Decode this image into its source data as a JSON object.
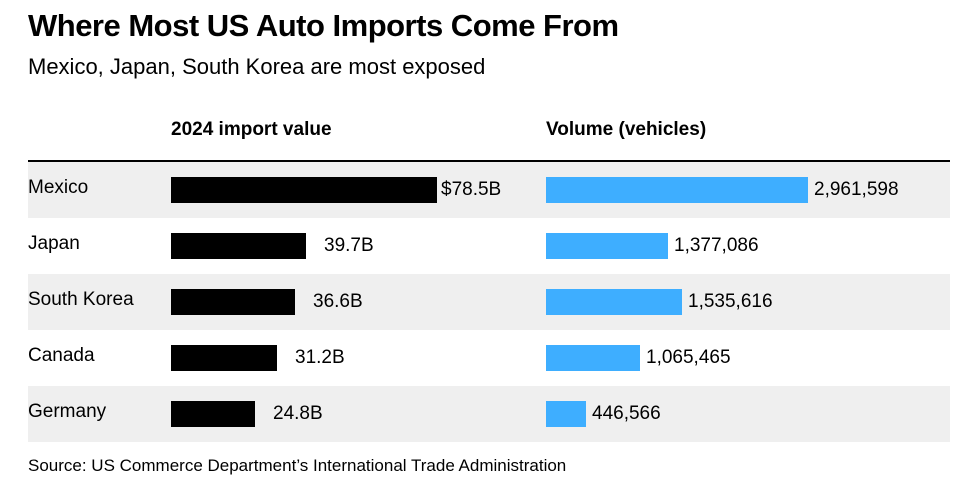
{
  "chart_data": {
    "type": "bar",
    "title": "Where Most US Auto Imports Come From",
    "subtitle": "Mexico, Japan, South Korea are most exposed",
    "categories": [
      "Mexico",
      "Japan",
      "South Korea",
      "Canada",
      "Germany"
    ],
    "series": [
      {
        "name": "2024 import value",
        "values": [
          78.5,
          39.7,
          36.6,
          31.2,
          24.8
        ],
        "labels": [
          "$78.5B",
          "39.7B",
          "36.6B",
          "31.2B",
          "24.8B"
        ],
        "color": "#000000",
        "unit": "billion USD"
      },
      {
        "name": "Volume (vehicles)",
        "values": [
          2961598,
          1377086,
          1535616,
          1065465,
          446566
        ],
        "labels": [
          "2,961,598",
          "1,377,086",
          "1,535,616",
          "1,065,465",
          "446,566"
        ],
        "color": "#3eaeff",
        "unit": "vehicles"
      }
    ],
    "source": "Source: US Commerce Department’s International Trade Administration"
  }
}
